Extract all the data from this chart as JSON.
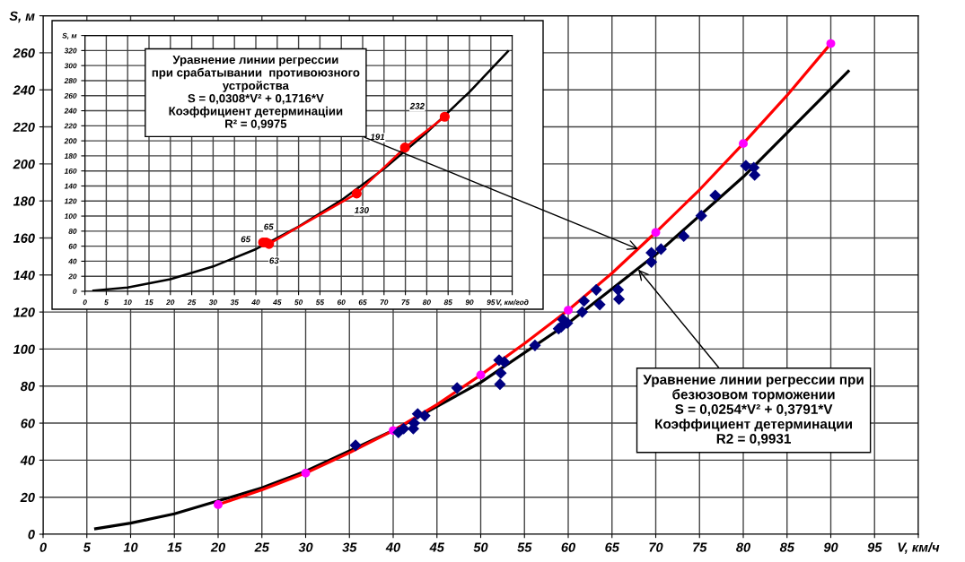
{
  "chart_data": [
    {
      "type": "scatter",
      "xlim": [
        0,
        100
      ],
      "ylim": [
        0,
        280
      ],
      "xticks": [
        0,
        5,
        10,
        15,
        20,
        25,
        30,
        35,
        40,
        45,
        50,
        55,
        60,
        65,
        70,
        75,
        80,
        85,
        90,
        95,
        {
          "value": 100,
          "label": "V, км/ч"
        }
      ],
      "yticks": [
        0,
        20,
        40,
        60,
        80,
        100,
        120,
        140,
        160,
        180,
        200,
        220,
        240,
        260,
        {
          "value": 280,
          "label": "S, м"
        }
      ],
      "grid": true,
      "series": [
        {
          "type": "line",
          "color": "#000000",
          "marker": "none",
          "x": [
            6,
            10,
            15,
            20,
            25,
            30,
            40,
            50,
            60,
            70,
            80,
            92
          ],
          "values": [
            3,
            6,
            11,
            18,
            25,
            34,
            56,
            82,
            114,
            151,
            193,
            250
          ]
        },
        {
          "type": "line",
          "color": "#ff0000",
          "marker": "none",
          "x": [
            20,
            25,
            30,
            35,
            40,
            45,
            50,
            55,
            60,
            65,
            70,
            75,
            80,
            85,
            90
          ],
          "values": [
            16,
            24,
            33,
            44,
            56,
            70,
            86,
            103,
            121,
            141,
            163,
            186,
            211,
            237,
            265
          ]
        },
        {
          "color": "#ff00ff",
          "marker": "circle",
          "x": [
            20,
            30,
            40,
            50,
            60,
            70,
            80,
            90
          ],
          "values": [
            16,
            33,
            56,
            86,
            121,
            163,
            211,
            265
          ]
        },
        {
          "color": "#000080",
          "marker": "diamond",
          "x": [
            35.7,
            40.6,
            41.2,
            42.3,
            42.4,
            42.8,
            43.6,
            47.3,
            52.1,
            52.7,
            52.3,
            52.2,
            56.2,
            58.9,
            59.2,
            59.9,
            59.4,
            61.6,
            61.8,
            63.2,
            63.6,
            65.7,
            65.8,
            69.5,
            69.5,
            70.6,
            73.2,
            75.2,
            76.8,
            80.3,
            81.2,
            81.3
          ],
          "values": [
            48,
            55,
            57,
            57,
            60,
            65,
            64,
            79,
            94,
            93,
            87,
            81,
            102,
            111,
            112,
            114,
            116,
            120,
            126,
            132,
            124,
            132,
            127,
            152,
            147,
            154,
            161,
            172,
            183,
            199,
            198,
            194
          ]
        }
      ],
      "annotations": [
        {
          "text": "Уравнение линии регрессии\nпри срабатывании  противоюзного\nустройства\nS = 0,0308*V² + 0,1716*V\nКоэффициент детерминацiии\nR² = 0,9975",
          "x": 68,
          "y": 154
        },
        {
          "text": "Уравнение линии регрессии при\nбезюзовом торможении\nS = 0,0254*V² + 0,3791*V\nКоэффициент детерминации\nR2 = 0,9931",
          "x": 68,
          "y": 143
        }
      ]
    },
    {
      "type": "line",
      "xlim": [
        0,
        100
      ],
      "ylim": [
        0,
        340
      ],
      "xticks": [
        0,
        5,
        10,
        15,
        20,
        25,
        30,
        35,
        40,
        45,
        50,
        55,
        60,
        65,
        70,
        75,
        80,
        85,
        90,
        95,
        {
          "value": 100,
          "label": "V, км/год"
        }
      ],
      "yticks": [
        0,
        20,
        40,
        60,
        80,
        100,
        120,
        140,
        160,
        180,
        200,
        220,
        240,
        260,
        280,
        300,
        320,
        {
          "value": 340,
          "label": "S, м"
        }
      ],
      "grid": true,
      "series": [
        {
          "color": "#000000",
          "marker": "none",
          "x": [
            2,
            10,
            20,
            30,
            40,
            50,
            60,
            70,
            80,
            90,
            99
          ],
          "values": [
            1,
            5,
            16,
            33,
            56,
            86,
            121,
            163,
            211,
            265,
            319
          ]
        },
        {
          "color": "#ff0000",
          "marker": "circle",
          "x": [
            41.7,
            42.4,
            43.1,
            63.6,
            74.9,
            84.2
          ],
          "values": [
            65,
            65,
            63,
            130,
            191,
            232
          ],
          "value_labels": [
            "65",
            "65",
            "63",
            "130",
            "191",
            "232"
          ]
        }
      ]
    }
  ]
}
